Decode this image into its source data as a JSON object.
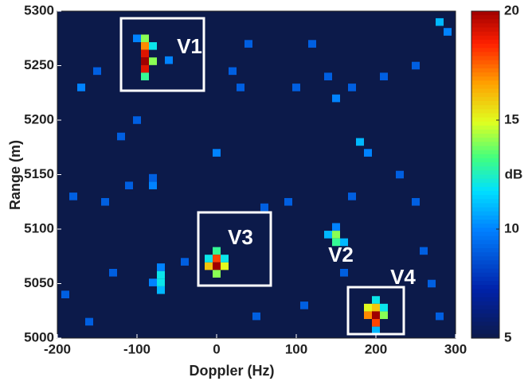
{
  "chart_data": {
    "type": "heatmap",
    "xlabel": "Doppler (Hz)",
    "ylabel": "Range (m)",
    "colorbar_label": "dB",
    "colormap": "jet",
    "xlim": [
      -200,
      300
    ],
    "ylim": [
      5000,
      5300
    ],
    "xticks": [
      -200,
      -100,
      0,
      100,
      200,
      300
    ],
    "yticks": [
      5000,
      5050,
      5100,
      5150,
      5200,
      5250,
      5300
    ],
    "clim": [
      5,
      20
    ],
    "cticks": [
      5,
      10,
      15,
      20
    ],
    "annotations": [
      "V1",
      "V2",
      "V3",
      "V4"
    ],
    "x": [
      -90,
      -90,
      -90,
      -90,
      -90,
      -90,
      -80,
      -80,
      -100,
      0,
      0,
      0,
      -10,
      10,
      0,
      -10,
      10,
      150,
      150,
      140,
      160,
      150,
      200,
      200,
      200,
      200,
      190,
      210,
      190,
      210,
      200,
      -70,
      -70,
      -70,
      -70,
      -80,
      -170,
      -150,
      -60,
      0,
      20,
      40,
      30,
      -120,
      -100,
      -80,
      -80,
      -40,
      -140,
      -180,
      -130,
      90,
      100,
      120,
      140,
      150,
      170,
      180,
      190,
      210,
      230,
      250,
      260,
      270,
      280,
      280,
      290,
      250,
      160,
      110,
      60,
      50,
      -160,
      -190,
      -110,
      170
    ],
    "y": [
      5275,
      5268,
      5261,
      5254,
      5247,
      5240,
      5268,
      5254,
      5275,
      5080,
      5073,
      5066,
      5066,
      5066,
      5059,
      5073,
      5073,
      5095,
      5088,
      5095,
      5088,
      5102,
      5035,
      5028,
      5021,
      5014,
      5021,
      5021,
      5028,
      5028,
      5007,
      5065,
      5058,
      5051,
      5044,
      5051,
      5230,
      5245,
      5255,
      5170,
      5245,
      5270,
      5230,
      5185,
      5200,
      5140,
      5147,
      5070,
      5125,
      5130,
      5060,
      5125,
      5230,
      5270,
      5240,
      5220,
      5230,
      5180,
      5170,
      5240,
      5150,
      5125,
      5080,
      5050,
      5020,
      5290,
      5281,
      5250,
      5060,
      5030,
      5120,
      5020,
      5015,
      5040,
      5140,
      5130
    ],
    "values": [
      14,
      17,
      19,
      20,
      19,
      13,
      12,
      14,
      10,
      13,
      18,
      20,
      16,
      15,
      14,
      12,
      12,
      14,
      13,
      11,
      11,
      10,
      12,
      16,
      20,
      18,
      17,
      14,
      15,
      12,
      11,
      10,
      12,
      12,
      11,
      10,
      10,
      9,
      10,
      10,
      9,
      9,
      9,
      9,
      9,
      10,
      9,
      9,
      9,
      9,
      9,
      9,
      9,
      9,
      9,
      10,
      9,
      11,
      10,
      9,
      9,
      9,
      9,
      9,
      9,
      11,
      10,
      9,
      9,
      9,
      9,
      9,
      9,
      9,
      9,
      9
    ]
  }
}
